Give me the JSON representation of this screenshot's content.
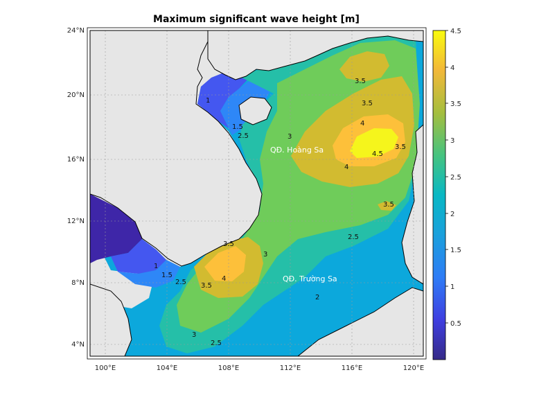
{
  "title": "Maximum significant wave height [m]",
  "map": {
    "lon_ticks": [
      "100°E",
      "104°E",
      "108°E",
      "112°E",
      "116°E",
      "120°E"
    ],
    "lat_ticks": [
      "4°N",
      "8°N",
      "12°N",
      "16°N",
      "20°N",
      "24°N"
    ],
    "lon_range": [
      99.2,
      120.8
    ],
    "lat_range": [
      3.0,
      24.0
    ],
    "places": [
      "QĐ. Hoàng Sa",
      "QĐ. Trường Sa"
    ],
    "contour_labels": [
      "1",
      "1.5",
      "2",
      "2.5",
      "3",
      "3.5",
      "4",
      "4.5"
    ]
  },
  "colorbar": {
    "ticks": [
      "0.5",
      "1",
      "1.5",
      "2",
      "2.5",
      "3",
      "3.5",
      "4",
      "4.5"
    ],
    "range": [
      0,
      4.5
    ],
    "colormap": "parula"
  },
  "colors": {
    "land": "#e6e6e6",
    "level_0_5": "#3e26a8",
    "level_1": "#4457f0",
    "level_1_5": "#2e87f7",
    "level_2": "#0ca8dc",
    "level_2_5": "#25bfa8",
    "level_3": "#6fcc5a",
    "level_3_5": "#d2bb30",
    "level_4": "#fdc03a",
    "level_4_5": "#f5f51c"
  }
}
